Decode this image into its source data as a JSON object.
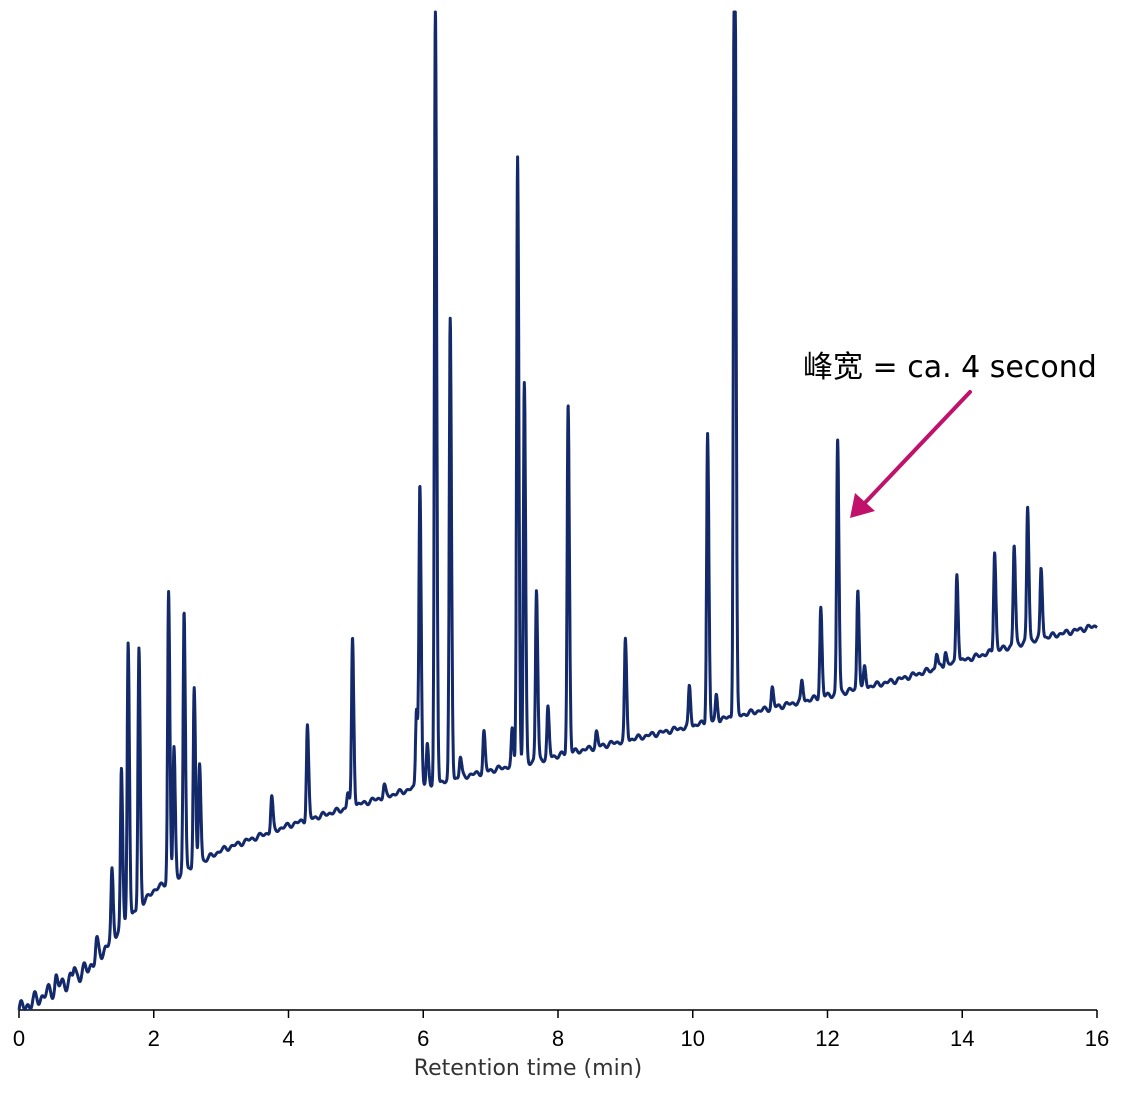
{
  "chart_data": {
    "type": "line",
    "title": "",
    "xlabel": "Retention time (min)",
    "ylabel": "",
    "xlim": [
      0,
      16
    ],
    "ylim": [
      0,
      100
    ],
    "x_ticks": [
      "0",
      "2",
      "4",
      "6",
      "8",
      "10",
      "12",
      "14",
      "16"
    ],
    "y_axis_visible": false,
    "grid": false,
    "legend": "none",
    "colors": {
      "trace": "#13296a",
      "arrow": "#c0116b"
    },
    "baseline": [
      [
        0,
        0
      ],
      [
        1,
        4
      ],
      [
        2,
        12
      ],
      [
        3,
        16
      ],
      [
        4,
        18.5
      ],
      [
        5,
        20.5
      ],
      [
        6,
        22.5
      ],
      [
        7,
        24
      ],
      [
        8,
        25.5
      ],
      [
        9,
        27
      ],
      [
        10,
        28.5
      ],
      [
        11,
        30
      ],
      [
        12,
        31.5
      ],
      [
        13,
        33
      ],
      [
        14,
        35
      ],
      [
        15,
        37
      ],
      [
        16,
        38.5
      ]
    ],
    "peaks": [
      {
        "t": 0.55,
        "h": 1.0
      },
      {
        "t": 0.82,
        "h": 1.0
      },
      {
        "t": 1.15,
        "h": 1.5
      },
      {
        "t": 1.38,
        "h": 6.5
      },
      {
        "t": 1.52,
        "h": 16
      },
      {
        "t": 1.62,
        "h": 28
      },
      {
        "t": 1.78,
        "h": 26
      },
      {
        "t": 2.22,
        "h": 29
      },
      {
        "t": 2.3,
        "h": 13
      },
      {
        "t": 2.45,
        "h": 26
      },
      {
        "t": 2.6,
        "h": 18
      },
      {
        "t": 2.68,
        "h": 10
      },
      {
        "t": 3.75,
        "h": 3.5
      },
      {
        "t": 4.28,
        "h": 9.5
      },
      {
        "t": 4.88,
        "h": 1.5
      },
      {
        "t": 4.95,
        "h": 17
      },
      {
        "t": 5.42,
        "h": 1.2
      },
      {
        "t": 5.9,
        "h": 8
      },
      {
        "t": 5.95,
        "h": 30
      },
      {
        "t": 6.06,
        "h": 4
      },
      {
        "t": 6.18,
        "h": 78
      },
      {
        "t": 6.4,
        "h": 46
      },
      {
        "t": 6.55,
        "h": 2
      },
      {
        "t": 6.9,
        "h": 4
      },
      {
        "t": 7.32,
        "h": 3.5
      },
      {
        "t": 7.4,
        "h": 61
      },
      {
        "t": 7.5,
        "h": 38
      },
      {
        "t": 7.68,
        "h": 17
      },
      {
        "t": 7.85,
        "h": 5
      },
      {
        "t": 8.15,
        "h": 35
      },
      {
        "t": 8.57,
        "h": 1.5
      },
      {
        "t": 9.0,
        "h": 10
      },
      {
        "t": 9.95,
        "h": 4
      },
      {
        "t": 10.22,
        "h": 29
      },
      {
        "t": 10.35,
        "h": 2.5
      },
      {
        "t": 10.62,
        "h": 97
      },
      {
        "t": 11.18,
        "h": 2
      },
      {
        "t": 11.62,
        "h": 2
      },
      {
        "t": 11.9,
        "h": 9
      },
      {
        "t": 12.15,
        "h": 25.5
      },
      {
        "t": 12.45,
        "h": 10
      },
      {
        "t": 12.55,
        "h": 2
      },
      {
        "t": 13.62,
        "h": 1.5
      },
      {
        "t": 13.75,
        "h": 1.5
      },
      {
        "t": 13.92,
        "h": 9
      },
      {
        "t": 14.48,
        "h": 10
      },
      {
        "t": 14.77,
        "h": 10
      },
      {
        "t": 14.97,
        "h": 13.5
      },
      {
        "t": 15.17,
        "h": 7
      }
    ],
    "annotations": [
      {
        "text": "峰宽 = ca. 4 second",
        "points_to_x": 12.15
      }
    ]
  }
}
